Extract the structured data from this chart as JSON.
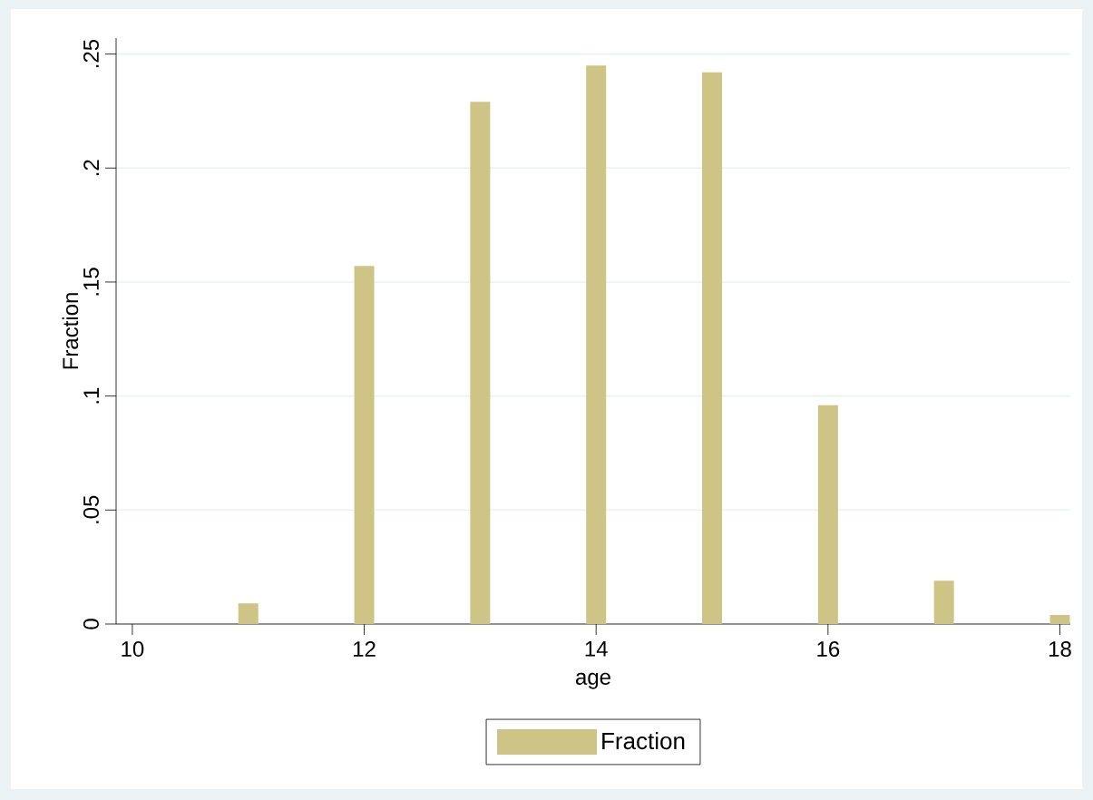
{
  "chart_data": {
    "type": "bar",
    "x": [
      11,
      12,
      13,
      14,
      15,
      16,
      17,
      18
    ],
    "series": [
      {
        "name": "Fraction",
        "color": "#cdc486",
        "values": [
          0.009,
          0.157,
          0.229,
          0.245,
          0.242,
          0.096,
          0.019,
          0.004
        ]
      }
    ],
    "xlabel": "age",
    "ylabel": "Fraction",
    "xlim": [
      9.86,
      18.09
    ],
    "ylim": [
      0,
      0.257
    ],
    "xticks": [
      10,
      12,
      14,
      16,
      18
    ],
    "yticks": [
      0,
      {
        "value": 0.05,
        "label": ".05"
      },
      {
        "value": 0.1,
        "label": ".1"
      },
      {
        "value": 0.15,
        "label": ".15"
      },
      {
        "value": 0.2,
        "label": ".2"
      },
      {
        "value": 0.25,
        "label": ".25"
      }
    ],
    "grid": "y",
    "legend": "bottom"
  }
}
